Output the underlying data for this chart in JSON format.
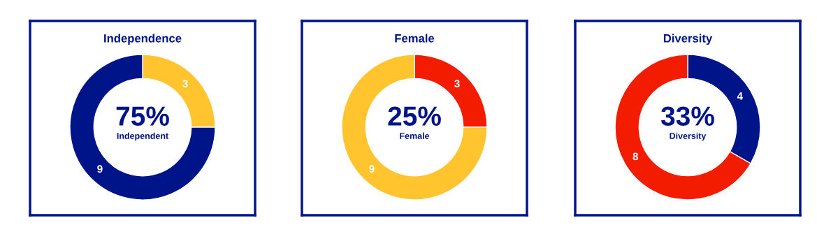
{
  "chart_data": [
    {
      "type": "donut",
      "title": "Independence",
      "categories": [
        null,
        null
      ],
      "values": [
        3,
        9
      ],
      "colors": [
        "#ffc42e",
        "#00148a"
      ],
      "data_labels": true,
      "annotations": [
        "75%",
        "Independent"
      ]
    },
    {
      "type": "donut",
      "title": "Female",
      "categories": [
        null,
        null
      ],
      "values": [
        3,
        9
      ],
      "colors": [
        "#f41c00",
        "#ffc42e"
      ],
      "data_labels": true,
      "annotations": [
        "25%",
        "Female"
      ]
    },
    {
      "type": "donut",
      "title": "Diversity",
      "categories": [
        null,
        null
      ],
      "values": [
        4,
        8
      ],
      "colors": [
        "#00148a",
        "#f41c00"
      ],
      "data_labels": true,
      "annotations": [
        "33%",
        "Diversity"
      ]
    }
  ]
}
